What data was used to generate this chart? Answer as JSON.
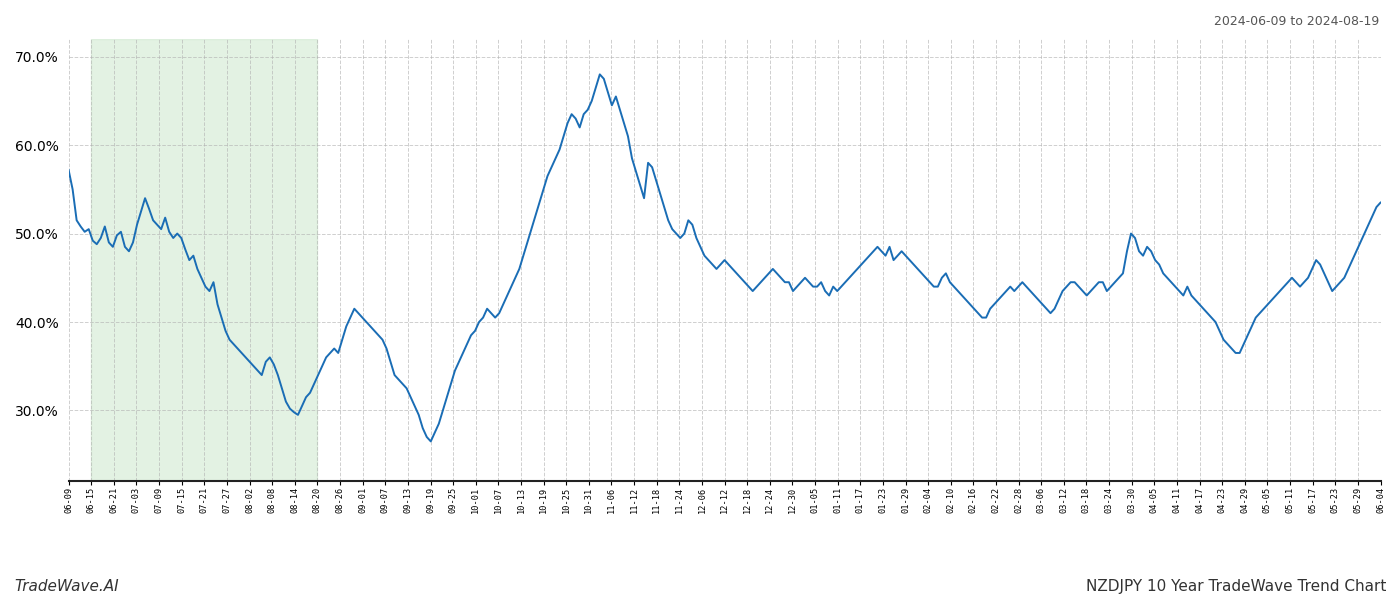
{
  "title_top_right": "2024-06-09 to 2024-08-19",
  "title_bottom_left": "TradeWave.AI",
  "title_bottom_right": "NZDJPY 10 Year TradeWave Trend Chart",
  "ylim": [
    22,
    72
  ],
  "yticks": [
    30.0,
    40.0,
    50.0,
    60.0,
    70.0
  ],
  "background_color": "#ffffff",
  "line_color": "#1a6db5",
  "shade_color": "#cde8cd",
  "shade_alpha": 0.55,
  "line_width": 1.4,
  "grid_color": "#b0b0b0",
  "grid_alpha": 0.6,
  "tick_labels": [
    "06-09",
    "06-15",
    "06-21",
    "07-03",
    "07-09",
    "07-15",
    "07-21",
    "07-27",
    "08-02",
    "08-08",
    "08-14",
    "08-20",
    "08-26",
    "09-01",
    "09-07",
    "09-13",
    "09-19",
    "09-25",
    "10-01",
    "10-07",
    "10-13",
    "10-19",
    "10-25",
    "10-31",
    "11-06",
    "11-12",
    "11-18",
    "11-24",
    "12-06",
    "12-12",
    "12-18",
    "12-24",
    "12-30",
    "01-05",
    "01-11",
    "01-17",
    "01-23",
    "01-29",
    "02-04",
    "02-10",
    "02-16",
    "02-22",
    "02-28",
    "03-06",
    "03-12",
    "03-18",
    "03-24",
    "03-30",
    "04-05",
    "04-11",
    "04-17",
    "04-23",
    "04-29",
    "05-05",
    "05-11",
    "05-17",
    "05-23",
    "05-29",
    "06-04"
  ],
  "shade_start_label": "06-15",
  "shade_end_label": "08-20",
  "values": [
    57.2,
    55.0,
    51.5,
    50.8,
    50.2,
    50.5,
    49.2,
    48.8,
    49.5,
    50.8,
    49.0,
    48.5,
    49.8,
    50.2,
    48.5,
    48.0,
    49.0,
    51.0,
    52.5,
    54.0,
    52.8,
    51.5,
    51.0,
    50.5,
    51.8,
    50.2,
    49.5,
    50.0,
    49.5,
    48.2,
    47.0,
    47.5,
    46.0,
    45.0,
    44.0,
    43.5,
    44.5,
    42.0,
    40.5,
    39.0,
    38.0,
    37.5,
    37.0,
    36.5,
    36.0,
    35.5,
    35.0,
    34.5,
    34.0,
    35.5,
    36.0,
    35.2,
    34.0,
    32.5,
    31.0,
    30.2,
    29.8,
    29.5,
    30.5,
    31.5,
    32.0,
    33.0,
    34.0,
    35.0,
    36.0,
    36.5,
    37.0,
    36.5,
    38.0,
    39.5,
    40.5,
    41.5,
    41.0,
    40.5,
    40.0,
    39.5,
    39.0,
    38.5,
    38.0,
    37.0,
    35.5,
    34.0,
    33.5,
    33.0,
    32.5,
    31.5,
    30.5,
    29.5,
    28.0,
    27.0,
    26.5,
    27.5,
    28.5,
    30.0,
    31.5,
    33.0,
    34.5,
    35.5,
    36.5,
    37.5,
    38.5,
    39.0,
    40.0,
    40.5,
    41.5,
    41.0,
    40.5,
    41.0,
    42.0,
    43.0,
    44.0,
    45.0,
    46.0,
    47.5,
    49.0,
    50.5,
    52.0,
    53.5,
    55.0,
    56.5,
    57.5,
    58.5,
    59.5,
    61.0,
    62.5,
    63.5,
    63.0,
    62.0,
    63.5,
    64.0,
    65.0,
    66.5,
    68.0,
    67.5,
    66.0,
    64.5,
    65.5,
    64.0,
    62.5,
    61.0,
    58.5,
    57.0,
    55.5,
    54.0,
    58.0,
    57.5,
    56.0,
    54.5,
    53.0,
    51.5,
    50.5,
    50.0,
    49.5,
    50.0,
    51.5,
    51.0,
    49.5,
    48.5,
    47.5,
    47.0,
    46.5,
    46.0,
    46.5,
    47.0,
    46.5,
    46.0,
    45.5,
    45.0,
    44.5,
    44.0,
    43.5,
    44.0,
    44.5,
    45.0,
    45.5,
    46.0,
    45.5,
    45.0,
    44.5,
    44.5,
    43.5,
    44.0,
    44.5,
    45.0,
    44.5,
    44.0,
    44.0,
    44.5,
    43.5,
    43.0,
    44.0,
    43.5,
    44.0,
    44.5,
    45.0,
    45.5,
    46.0,
    46.5,
    47.0,
    47.5,
    48.0,
    48.5,
    48.0,
    47.5,
    48.5,
    47.0,
    47.5,
    48.0,
    47.5,
    47.0,
    46.5,
    46.0,
    45.5,
    45.0,
    44.5,
    44.0,
    44.0,
    45.0,
    45.5,
    44.5,
    44.0,
    43.5,
    43.0,
    42.5,
    42.0,
    41.5,
    41.0,
    40.5,
    40.5,
    41.5,
    42.0,
    42.5,
    43.0,
    43.5,
    44.0,
    43.5,
    44.0,
    44.5,
    44.0,
    43.5,
    43.0,
    42.5,
    42.0,
    41.5,
    41.0,
    41.5,
    42.5,
    43.5,
    44.0,
    44.5,
    44.5,
    44.0,
    43.5,
    43.0,
    43.5,
    44.0,
    44.5,
    44.5,
    43.5,
    44.0,
    44.5,
    45.0,
    45.5,
    48.0,
    50.0,
    49.5,
    48.0,
    47.5,
    48.5,
    48.0,
    47.0,
    46.5,
    45.5,
    45.0,
    44.5,
    44.0,
    43.5,
    43.0,
    44.0,
    43.0,
    42.5,
    42.0,
    41.5,
    41.0,
    40.5,
    40.0,
    39.0,
    38.0,
    37.5,
    37.0,
    36.5,
    36.5,
    37.5,
    38.5,
    39.5,
    40.5,
    41.0,
    41.5,
    42.0,
    42.5,
    43.0,
    43.5,
    44.0,
    44.5,
    45.0,
    44.5,
    44.0,
    44.5,
    45.0,
    46.0,
    47.0,
    46.5,
    45.5,
    44.5,
    43.5,
    44.0,
    44.5,
    45.0,
    46.0,
    47.0,
    48.0,
    49.0,
    50.0,
    51.0,
    52.0,
    53.0,
    53.5
  ]
}
